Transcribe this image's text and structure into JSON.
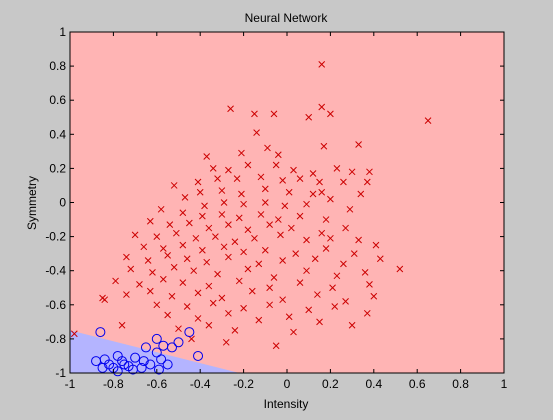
{
  "chart_data": {
    "type": "scatter",
    "title": "Neural Network",
    "xlabel": "Intensity",
    "ylabel": "Symmetry",
    "xlim": [
      -1,
      1
    ],
    "ylim": [
      -1,
      1
    ],
    "xticks": [
      -1,
      -0.8,
      -0.6,
      -0.4,
      -0.2,
      0,
      0.2,
      0.4,
      0.6,
      0.8,
      1
    ],
    "yticks": [
      -1,
      -0.8,
      -0.6,
      -0.4,
      -0.2,
      0,
      0.2,
      0.4,
      0.6,
      0.8,
      1
    ],
    "xtick_labels": [
      "-1",
      "-0.8",
      "-0.6",
      "-0.4",
      "-0.2",
      "0",
      "0.2",
      "0.4",
      "0.6",
      "0.8",
      "1"
    ],
    "ytick_labels": [
      "-1",
      "-0.8",
      "-0.6",
      "-0.4",
      "-0.2",
      "0",
      "0.2",
      "0.4",
      "0.6",
      "0.8",
      "1"
    ],
    "grid": false,
    "legend": "none",
    "regions": [
      {
        "color": "#ffb4b4",
        "polygon": [
          [
            -1,
            1
          ],
          [
            1,
            1
          ],
          [
            1,
            -1
          ],
          [
            -0.22,
            -1
          ],
          [
            -1,
            -0.75
          ]
        ]
      },
      {
        "color": "#b4b4ff",
        "polygon": [
          [
            -1,
            -0.75
          ],
          [
            -0.22,
            -1
          ],
          [
            -1,
            -1
          ]
        ]
      }
    ],
    "series": [
      {
        "marker": "x",
        "color": "#cc0000",
        "points": [
          [
            0.16,
            0.81
          ],
          [
            0.65,
            0.48
          ],
          [
            0.16,
            0.56
          ],
          [
            -0.26,
            0.55
          ],
          [
            -0.15,
            0.52
          ],
          [
            -0.14,
            0.41
          ],
          [
            -0.06,
            0.52
          ],
          [
            0.1,
            0.5
          ],
          [
            0.2,
            0.52
          ],
          [
            0.17,
            0.33
          ],
          [
            0.33,
            0.34
          ],
          [
            -0.09,
            0.32
          ],
          [
            -0.21,
            0.29
          ],
          [
            -0.37,
            0.27
          ],
          [
            -0.04,
            0.28
          ],
          [
            -0.34,
            0.2
          ],
          [
            -0.27,
            0.19
          ],
          [
            -0.18,
            0.22
          ],
          [
            -0.05,
            0.22
          ],
          [
            0.03,
            0.19
          ],
          [
            0.12,
            0.17
          ],
          [
            0.23,
            0.2
          ],
          [
            0.3,
            0.18
          ],
          [
            0.38,
            0.18
          ],
          [
            -0.41,
            0.12
          ],
          [
            -0.32,
            0.14
          ],
          [
            -0.23,
            0.14
          ],
          [
            -0.12,
            0.15
          ],
          [
            -0.02,
            0.13
          ],
          [
            0.06,
            0.14
          ],
          [
            0.15,
            0.12
          ],
          [
            0.26,
            0.12
          ],
          [
            0.37,
            0.12
          ],
          [
            -0.52,
            0.1
          ],
          [
            -0.4,
            0.06
          ],
          [
            -0.3,
            0.07
          ],
          [
            -0.21,
            0.05
          ],
          [
            -0.1,
            0.08
          ],
          [
            0.01,
            0.06
          ],
          [
            0.12,
            0.05
          ],
          [
            0.2,
            0.02
          ],
          [
            0.34,
            0.05
          ],
          [
            -0.47,
            0.03
          ],
          [
            -0.38,
            -0.02
          ],
          [
            -0.29,
            0.0
          ],
          [
            -0.2,
            -0.01
          ],
          [
            -0.1,
            0.0
          ],
          [
            -0.01,
            -0.02
          ],
          [
            0.09,
            -0.01
          ],
          [
            0.16,
            0.06
          ],
          [
            -0.58,
            -0.04
          ],
          [
            -0.48,
            -0.06
          ],
          [
            -0.39,
            -0.08
          ],
          [
            -0.3,
            -0.07
          ],
          [
            -0.22,
            -0.09
          ],
          [
            -0.12,
            -0.07
          ],
          [
            -0.04,
            -0.1
          ],
          [
            0.06,
            -0.08
          ],
          [
            0.18,
            -0.1
          ],
          [
            0.29,
            -0.04
          ],
          [
            -0.63,
            -0.11
          ],
          [
            -0.54,
            -0.13
          ],
          [
            -0.45,
            -0.12
          ],
          [
            -0.36,
            -0.15
          ],
          [
            -0.27,
            -0.13
          ],
          [
            -0.18,
            -0.16
          ],
          [
            -0.08,
            -0.13
          ],
          [
            0.02,
            -0.15
          ],
          [
            0.16,
            -0.18
          ],
          [
            0.27,
            -0.15
          ],
          [
            -0.7,
            -0.19
          ],
          [
            -0.6,
            -0.2
          ],
          [
            -0.51,
            -0.18
          ],
          [
            -0.42,
            -0.21
          ],
          [
            -0.33,
            -0.2
          ],
          [
            -0.24,
            -0.23
          ],
          [
            -0.15,
            -0.21
          ],
          [
            -0.03,
            -0.19
          ],
          [
            0.09,
            -0.22
          ],
          [
            0.2,
            -0.21
          ],
          [
            0.33,
            -0.22
          ],
          [
            -0.66,
            -0.26
          ],
          [
            -0.57,
            -0.27
          ],
          [
            -0.48,
            -0.25
          ],
          [
            -0.39,
            -0.28
          ],
          [
            -0.29,
            -0.26
          ],
          [
            -0.2,
            -0.29
          ],
          [
            -0.1,
            -0.28
          ],
          [
            0.04,
            -0.3
          ],
          [
            0.18,
            -0.27
          ],
          [
            0.31,
            -0.3
          ],
          [
            0.41,
            -0.25
          ],
          [
            -0.74,
            -0.32
          ],
          [
            -0.64,
            -0.34
          ],
          [
            -0.55,
            -0.31
          ],
          [
            -0.46,
            -0.33
          ],
          [
            -0.37,
            -0.35
          ],
          [
            -0.27,
            -0.32
          ],
          [
            -0.13,
            -0.36
          ],
          [
            -0.02,
            -0.34
          ],
          [
            0.13,
            -0.33
          ],
          [
            0.26,
            -0.36
          ],
          [
            0.43,
            -0.33
          ],
          [
            -0.72,
            -0.39
          ],
          [
            -0.62,
            -0.41
          ],
          [
            -0.52,
            -0.38
          ],
          [
            -0.43,
            -0.4
          ],
          [
            -0.32,
            -0.42
          ],
          [
            -0.18,
            -0.39
          ],
          [
            -0.06,
            -0.44
          ],
          [
            0.09,
            -0.4
          ],
          [
            0.23,
            -0.43
          ],
          [
            0.36,
            -0.41
          ],
          [
            0.52,
            -0.39
          ],
          [
            -0.79,
            -0.46
          ],
          [
            -0.68,
            -0.48
          ],
          [
            -0.57,
            -0.45
          ],
          [
            -0.48,
            -0.47
          ],
          [
            -0.36,
            -0.49
          ],
          [
            -0.22,
            -0.46
          ],
          [
            -0.08,
            -0.5
          ],
          [
            0.06,
            -0.47
          ],
          [
            0.21,
            -0.5
          ],
          [
            0.38,
            -0.48
          ],
          [
            -0.85,
            -0.56
          ],
          [
            -0.74,
            -0.54
          ],
          [
            -0.63,
            -0.52
          ],
          [
            -0.53,
            -0.55
          ],
          [
            -0.41,
            -0.53
          ],
          [
            -0.3,
            -0.56
          ],
          [
            -0.16,
            -0.52
          ],
          [
            -0.02,
            -0.57
          ],
          [
            0.14,
            -0.54
          ],
          [
            0.27,
            -0.58
          ],
          [
            0.4,
            -0.55
          ],
          [
            -0.84,
            -0.57
          ],
          [
            -0.6,
            -0.6
          ],
          [
            -0.46,
            -0.61
          ],
          [
            -0.34,
            -0.59
          ],
          [
            -0.2,
            -0.62
          ],
          [
            -0.08,
            -0.6
          ],
          [
            0.1,
            -0.63
          ],
          [
            0.22,
            -0.61
          ],
          [
            0.37,
            -0.65
          ],
          [
            -0.55,
            -0.66
          ],
          [
            -0.41,
            -0.68
          ],
          [
            -0.27,
            -0.65
          ],
          [
            -0.13,
            -0.69
          ],
          [
            0.01,
            -0.67
          ],
          [
            0.15,
            -0.7
          ],
          [
            0.3,
            -0.72
          ],
          [
            -0.98,
            -0.77
          ],
          [
            -0.76,
            -0.72
          ],
          [
            -0.5,
            -0.74
          ],
          [
            -0.36,
            -0.72
          ],
          [
            -0.24,
            -0.75
          ],
          [
            0.03,
            -0.76
          ],
          [
            -0.44,
            -0.8
          ],
          [
            -0.28,
            -0.82
          ],
          [
            -0.05,
            -0.84
          ]
        ]
      },
      {
        "marker": "o",
        "color": "#0000ee",
        "points": [
          [
            -0.86,
            -0.76
          ],
          [
            -0.45,
            -0.76
          ],
          [
            -0.6,
            -0.8
          ],
          [
            -0.5,
            -0.82
          ],
          [
            -0.57,
            -0.84
          ],
          [
            -0.65,
            -0.85
          ],
          [
            -0.53,
            -0.85
          ],
          [
            -0.41,
            -0.9
          ],
          [
            -0.6,
            -0.88
          ],
          [
            -0.78,
            -0.9
          ],
          [
            -0.7,
            -0.91
          ],
          [
            -0.84,
            -0.92
          ],
          [
            -0.76,
            -0.93
          ],
          [
            -0.66,
            -0.93
          ],
          [
            -0.58,
            -0.92
          ],
          [
            -0.88,
            -0.93
          ],
          [
            -0.82,
            -0.95
          ],
          [
            -0.73,
            -0.96
          ],
          [
            -0.63,
            -0.95
          ],
          [
            -0.55,
            -0.95
          ],
          [
            -0.8,
            -0.97
          ],
          [
            -0.71,
            -0.98
          ],
          [
            -0.59,
            -0.98
          ],
          [
            -0.78,
            -0.99
          ],
          [
            -0.67,
            -0.97
          ],
          [
            -0.75,
            -0.95
          ],
          [
            -0.85,
            -0.97
          ]
        ]
      }
    ]
  }
}
